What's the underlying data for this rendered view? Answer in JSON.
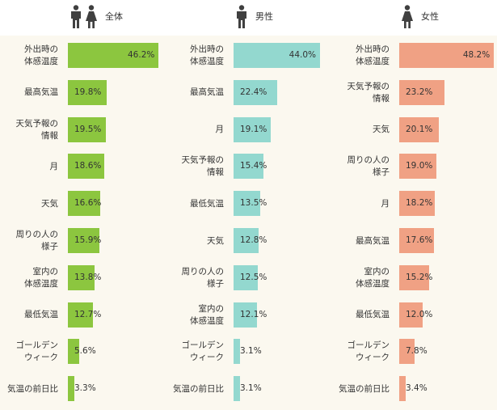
{
  "colors": {
    "all": "#8cc63f",
    "male": "#93d8cf",
    "female": "#f0a184",
    "band": "#fbf8ef",
    "icon": "#404040"
  },
  "scale_max": 46.2,
  "panels": [
    {
      "key": "all",
      "title": "全体",
      "icons": [
        "male-icon",
        "female-icon"
      ],
      "items": [
        {
          "label": "外出時の\n体感温度",
          "value": 46.2,
          "value_text": "46.2%"
        },
        {
          "label": "最高気温",
          "value": 19.8,
          "value_text": "19.8%"
        },
        {
          "label": "天気予報の\n情報",
          "value": 19.5,
          "value_text": "19.5%"
        },
        {
          "label": "月",
          "value": 18.6,
          "value_text": "18.6%"
        },
        {
          "label": "天気",
          "value": 16.6,
          "value_text": "16.6%"
        },
        {
          "label": "周りの人の\n様子",
          "value": 15.9,
          "value_text": "15.9%"
        },
        {
          "label": "室内の\n体感温度",
          "value": 13.8,
          "value_text": "13.8%"
        },
        {
          "label": "最低気温",
          "value": 12.7,
          "value_text": "12.7%"
        },
        {
          "label": "ゴールデン\nウィーク",
          "value": 5.6,
          "value_text": "5.6%"
        },
        {
          "label": "気温の前日比",
          "value": 3.3,
          "value_text": "3.3%"
        }
      ]
    },
    {
      "key": "male",
      "title": "男性",
      "icons": [
        "male-icon"
      ],
      "items": [
        {
          "label": "外出時の\n体感温度",
          "value": 44.0,
          "value_text": "44.0%"
        },
        {
          "label": "最高気温",
          "value": 22.4,
          "value_text": "22.4%"
        },
        {
          "label": "月",
          "value": 19.1,
          "value_text": "19.1%"
        },
        {
          "label": "天気予報の\n情報",
          "value": 15.4,
          "value_text": "15.4%"
        },
        {
          "label": "最低気温",
          "value": 13.5,
          "value_text": "13.5%"
        },
        {
          "label": "天気",
          "value": 12.8,
          "value_text": "12.8%"
        },
        {
          "label": "周りの人の\n様子",
          "value": 12.5,
          "value_text": "12.5%"
        },
        {
          "label": "室内の\n体感温度",
          "value": 12.1,
          "value_text": "12.1%"
        },
        {
          "label": "ゴールデン\nウィーク",
          "value": 3.1,
          "value_text": "3.1%"
        },
        {
          "label": "気温の前日比",
          "value": 3.1,
          "value_text": "3.1%"
        }
      ]
    },
    {
      "key": "female",
      "title": "女性",
      "icons": [
        "female-icon"
      ],
      "items": [
        {
          "label": "外出時の\n体感温度",
          "value": 48.2,
          "value_text": "48.2%"
        },
        {
          "label": "天気予報の\n情報",
          "value": 23.2,
          "value_text": "23.2%"
        },
        {
          "label": "天気",
          "value": 20.1,
          "value_text": "20.1%"
        },
        {
          "label": "周りの人の\n様子",
          "value": 19.0,
          "value_text": "19.0%"
        },
        {
          "label": "月",
          "value": 18.2,
          "value_text": "18.2%"
        },
        {
          "label": "最高気温",
          "value": 17.6,
          "value_text": "17.6%"
        },
        {
          "label": "室内の\n体感温度",
          "value": 15.2,
          "value_text": "15.2%"
        },
        {
          "label": "最低気温",
          "value": 12.0,
          "value_text": "12.0%"
        },
        {
          "label": "ゴールデン\nウィーク",
          "value": 7.8,
          "value_text": "7.8%"
        },
        {
          "label": "気温の前日比",
          "value": 3.4,
          "value_text": "3.4%"
        }
      ]
    }
  ],
  "chart_data": {
    "type": "bar",
    "orientation": "horizontal",
    "unit": "%",
    "panels": [
      {
        "title": "全体",
        "categories": [
          "外出時の体感温度",
          "最高気温",
          "天気予報の情報",
          "月",
          "天気",
          "周りの人の様子",
          "室内の体感温度",
          "最低気温",
          "ゴールデンウィーク",
          "気温の前日比"
        ],
        "values": [
          46.2,
          19.8,
          19.5,
          18.6,
          16.6,
          15.9,
          13.8,
          12.7,
          5.6,
          3.3
        ]
      },
      {
        "title": "男性",
        "categories": [
          "外出時の体感温度",
          "最高気温",
          "月",
          "天気予報の情報",
          "最低気温",
          "天気",
          "周りの人の様子",
          "室内の体感温度",
          "ゴールデンウィーク",
          "気温の前日比"
        ],
        "values": [
          44.0,
          22.4,
          19.1,
          15.4,
          13.5,
          12.8,
          12.5,
          12.1,
          3.1,
          3.1
        ]
      },
      {
        "title": "女性",
        "categories": [
          "外出時の体感温度",
          "天気予報の情報",
          "天気",
          "周りの人の様子",
          "月",
          "最高気温",
          "室内の体感温度",
          "最低気温",
          "ゴールデンウィーク",
          "気温の前日比"
        ],
        "values": [
          48.2,
          23.2,
          20.1,
          19.0,
          18.2,
          17.6,
          15.2,
          12.0,
          7.8,
          3.4
        ]
      }
    ]
  }
}
